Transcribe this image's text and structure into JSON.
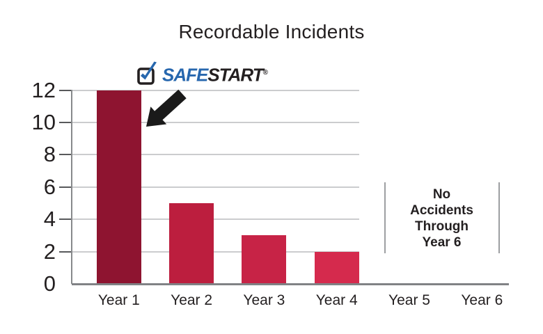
{
  "title": "Recordable Incidents",
  "logo": {
    "safe": "SAFE",
    "start": "START",
    "reg": "®",
    "check_color": "#2767AE",
    "box_color": "#231F20"
  },
  "callout": {
    "lines": [
      "No",
      "Accidents",
      "Through",
      "Year 6"
    ],
    "text": "No Accidents Through Year 6"
  },
  "chart_data": {
    "type": "bar",
    "title": "Recordable Incidents",
    "categories": [
      "Year 1",
      "Year 2",
      "Year 3",
      "Year 4",
      "Year 5",
      "Year 6"
    ],
    "values": [
      12,
      5,
      3,
      2,
      0,
      0
    ],
    "bar_colors": [
      "#8E1430",
      "#BC1E3E",
      "#C72346",
      "#D52A4D",
      null,
      null
    ],
    "yticks": [
      0,
      2,
      4,
      6,
      8,
      10,
      12
    ],
    "ylim": [
      0,
      12
    ],
    "xlabel": "",
    "ylabel": "",
    "grid": "horizontal",
    "legend": "none",
    "annotation": "No Accidents Through Year 6",
    "annotation_span": [
      "Year 5",
      "Year 6"
    ]
  },
  "colors": {
    "gridline": "#CBCCCE",
    "axis": "#808285",
    "tick": "#58595B",
    "text": "#231F20",
    "callout_line": "#9D9FA2",
    "arrow": "#1A1A1A"
  }
}
